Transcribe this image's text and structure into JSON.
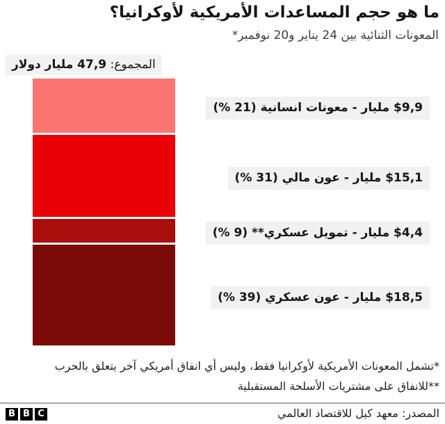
{
  "header": {
    "title": "ما هو حجم المساعدات الأمريكية لأوكرانيا؟",
    "subtitle": "المعونات الثنائية بين 24 يناير و20 نوفمبر*"
  },
  "total": {
    "prefix": "المجموع:",
    "value_text": "47,9 مليار دولار"
  },
  "chart_data": {
    "type": "bar",
    "subtype": "single-stacked-vertical-column",
    "title": "ما هو حجم المساعدات الأمريكية لأوكرانيا؟",
    "subtitle": "المعونات الثنائية بين 24 يناير و20 نوفمبر*",
    "total_value": 47.9,
    "total_label": "المجموع: 47,9 مليار دولار",
    "currency": "$",
    "unit": "مليار دولار",
    "grid": "off",
    "legend": "labels-beside-segments",
    "segments": [
      {
        "category": "معونات انسانية",
        "value": 9.9,
        "percent": 21,
        "color": "#fb7573",
        "label": "$9,9 مليار - معونات انسانية (21 %)"
      },
      {
        "category": "عون مالي",
        "value": 15.1,
        "percent": 31,
        "color": "#e90006",
        "label": "$15,1 مليار - عون مالي (31 %)"
      },
      {
        "category": "تمويل عسكري",
        "value": 4.4,
        "percent": 9,
        "color": "#a60f0b",
        "label": "$4,4 مليار - تمويل عسكري** (9 %)"
      },
      {
        "category": "عون عسكري",
        "value": 18.5,
        "percent": 39,
        "color": "#7a0b08",
        "label": "$18,5 مليار - عون عسكري (39 %)"
      }
    ],
    "label_bg_color": "#f1f1f1"
  },
  "footnotes": {
    "line1": "*تشمل المعونات الأمريكية لأوكرانيا فقط، وليس أي انفاق أمريكي آخر يتعلق بالحرب",
    "line2": "**للانفاق على مشتريات الأسلحة المستقبلية"
  },
  "footer": {
    "source": "المصدر: معهد كيل للاقتصاد العالمي",
    "logo": {
      "b1": "B",
      "b2": "B",
      "b3": "C"
    }
  }
}
